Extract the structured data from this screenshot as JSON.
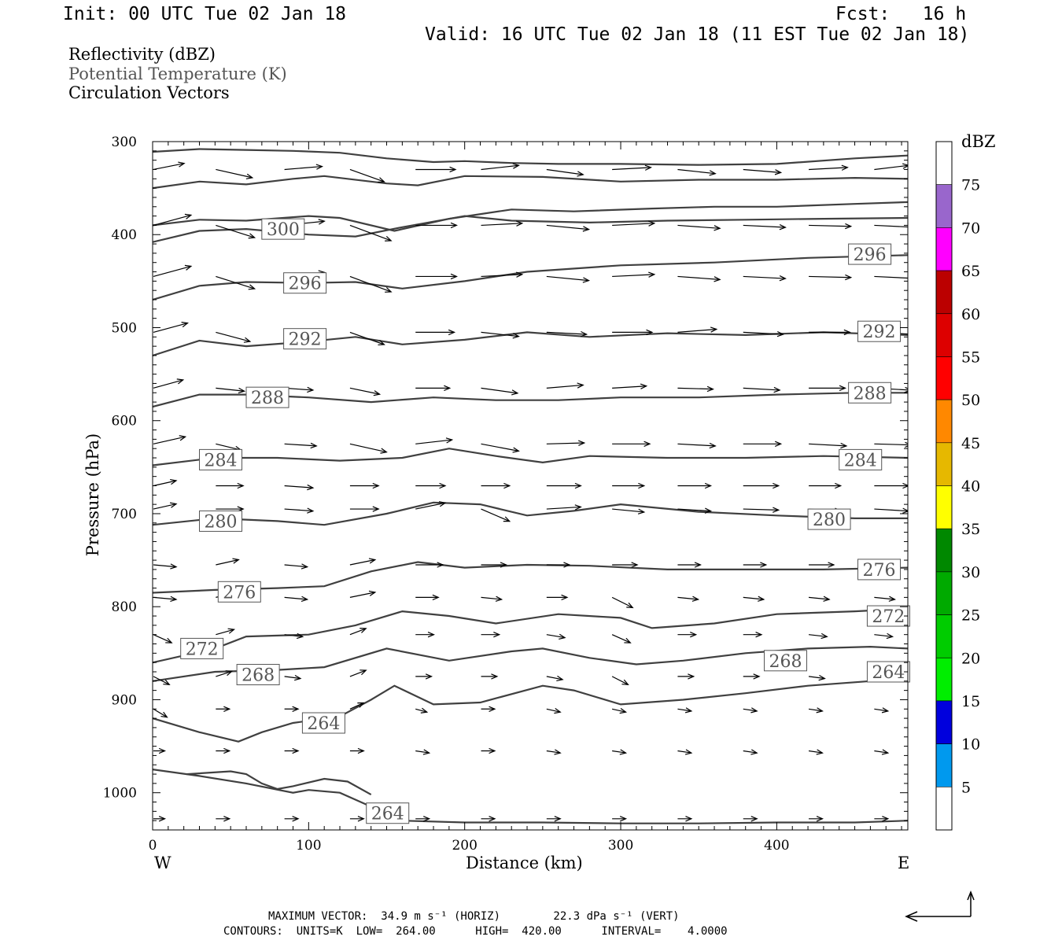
{
  "header": {
    "init": "Init: 00 UTC Tue 02 Jan 18",
    "fcst": "Fcst:   16 h",
    "valid": "Valid: 16 UTC Tue 02 Jan 18 (11 EST Tue 02 Jan 18)"
  },
  "legend_lines": [
    "Reflectivity (dBZ)",
    "Potential Temperature (K)",
    "Circulation Vectors"
  ],
  "footer": {
    "max_vector": "MAXIMUM VECTOR:  34.9 m s⁻¹ (HORIZ)        22.3 dPa s⁻¹ (VERT)",
    "contours": "CONTOURS:  UNITS=K  LOW=  264.00      HIGH=  420.00      INTERVAL=    4.0000"
  },
  "chart_data": {
    "type": "line",
    "xlabel": "Distance (km)",
    "ylabel": "Pressure (hPa)",
    "xlim": [
      0,
      484
    ],
    "ylim": [
      1040,
      300
    ],
    "x_ticks": [
      0,
      100,
      200,
      300,
      400
    ],
    "y_ticks": [
      300,
      400,
      500,
      600,
      700,
      800,
      900,
      1000
    ],
    "x_end_labels": [
      "W",
      "E"
    ],
    "line_color": "#404040",
    "colorbar": {
      "unit": "dBZ",
      "labels": [
        "75",
        "70",
        "65",
        "60",
        "55",
        "50",
        "45",
        "40",
        "35",
        "30",
        "25",
        "20",
        "15",
        "10",
        "5"
      ],
      "colors": [
        "#9966cc",
        "#ff00ff",
        "#bb0000",
        "#dd0000",
        "#ff0000",
        "#ff8800",
        "#e6b800",
        "#ffff00",
        "#008800",
        "#00aa00",
        "#00cc00",
        "#00ee00",
        "#0000dd",
        "#0099ee",
        "#00dddd"
      ]
    },
    "isentropes": [
      {
        "x": [
          0,
          30,
          60,
          90,
          120,
          150,
          180,
          200,
          230,
          260,
          300,
          350,
          400,
          450,
          484
        ],
        "p": [
          311,
          308,
          309,
          310,
          312,
          318,
          322,
          321,
          323,
          324,
          324,
          325,
          324,
          318,
          315
        ]
      },
      {
        "x": [
          0,
          30,
          60,
          90,
          110,
          150,
          170,
          200,
          250,
          300,
          350,
          400,
          450,
          484
        ],
        "p": [
          350,
          343,
          346,
          340,
          337,
          345,
          347,
          337,
          338,
          343,
          341,
          341,
          339,
          340
        ]
      },
      {
        "x": [
          0,
          30,
          60,
          100,
          120,
          155,
          190,
          230,
          270,
          320,
          360,
          400,
          450,
          484
        ],
        "p": [
          390,
          384,
          385,
          380,
          382,
          396,
          383,
          373,
          375,
          372,
          370,
          370,
          367,
          365
        ]
      },
      {
        "x": [
          0,
          30,
          60,
          100,
          130,
          160,
          200,
          230,
          280,
          330,
          380,
          430,
          484
        ],
        "p": [
          408,
          396,
          394,
          400,
          402,
          392,
          380,
          385,
          387,
          385,
          384,
          383,
          382
        ]
      },
      {
        "label": "300",
        "x": [
          70
        ],
        "p": [
          394
        ]
      },
      {
        "x": [
          0,
          30,
          60,
          100,
          130,
          160,
          200,
          240,
          300,
          360,
          420,
          484
        ],
        "p": [
          470,
          455,
          451,
          452,
          451,
          458,
          450,
          440,
          433,
          430,
          425,
          422
        ]
      },
      {
        "label": "296",
        "lx": [
          84,
          446
        ],
        "lp": [
          452,
          421
        ]
      },
      {
        "x": [
          0,
          30,
          60,
          100,
          130,
          160,
          200,
          240,
          280,
          330,
          380,
          430,
          484
        ],
        "p": [
          530,
          514,
          520,
          515,
          510,
          518,
          513,
          505,
          510,
          506,
          508,
          505,
          508
        ]
      },
      {
        "label": "292",
        "lx": [
          84,
          452
        ],
        "lp": [
          512,
          504
        ]
      },
      {
        "x": [
          0,
          30,
          60,
          100,
          140,
          180,
          220,
          260,
          300,
          350,
          400,
          450,
          484
        ],
        "p": [
          585,
          572,
          572,
          575,
          580,
          575,
          578,
          578,
          575,
          575,
          572,
          570,
          570
        ]
      },
      {
        "label": "288",
        "lx": [
          60,
          446
        ],
        "lp": [
          575,
          570
        ]
      },
      {
        "x": [
          0,
          40,
          80,
          120,
          160,
          190,
          220,
          250,
          280,
          330,
          380,
          430,
          484
        ],
        "p": [
          648,
          640,
          640,
          643,
          640,
          630,
          638,
          645,
          638,
          640,
          640,
          638,
          640
        ]
      },
      {
        "label": "284",
        "lx": [
          30,
          440
        ],
        "lp": [
          642,
          642
        ]
      },
      {
        "x": [
          0,
          40,
          80,
          110,
          150,
          180,
          210,
          240,
          270,
          300,
          350,
          400,
          450,
          484
        ],
        "p": [
          712,
          705,
          708,
          712,
          700,
          688,
          690,
          702,
          697,
          690,
          698,
          702,
          705,
          705
        ]
      },
      {
        "label": "280",
        "lx": [
          30,
          420
        ],
        "lp": [
          708,
          706
        ]
      },
      {
        "x": [
          0,
          40,
          80,
          110,
          140,
          170,
          200,
          240,
          280,
          330,
          380,
          430,
          484
        ],
        "p": [
          785,
          782,
          780,
          778,
          762,
          752,
          758,
          755,
          756,
          760,
          760,
          760,
          758
        ]
      },
      {
        "label": "276",
        "lx": [
          42,
          452
        ],
        "lp": [
          784,
          760
        ]
      },
      {
        "x": [
          0,
          40,
          60,
          100,
          130,
          160,
          190,
          220,
          260,
          300,
          320,
          360,
          400,
          450,
          484
        ],
        "p": [
          860,
          845,
          832,
          830,
          820,
          805,
          810,
          818,
          808,
          812,
          823,
          818,
          808,
          805,
          802
        ]
      },
      {
        "label": "272",
        "lx": [
          18,
          458
        ],
        "lp": [
          845,
          810
        ]
      },
      {
        "x": [
          0,
          40,
          80,
          110,
          150,
          190,
          230,
          250,
          280,
          310,
          340,
          380,
          420,
          460,
          484
        ],
        "p": [
          880,
          870,
          868,
          865,
          845,
          858,
          848,
          845,
          855,
          862,
          858,
          850,
          845,
          843,
          845
        ]
      },
      {
        "label": "268",
        "lx": [
          54,
          392
        ],
        "lp": [
          873,
          858
        ]
      },
      {
        "x": [
          0,
          30,
          55,
          70,
          90,
          120,
          140,
          155,
          180,
          210,
          250,
          270,
          300,
          340,
          380,
          420,
          460,
          484
        ],
        "p": [
          920,
          935,
          945,
          935,
          925,
          918,
          900,
          885,
          905,
          903,
          885,
          890,
          905,
          900,
          893,
          885,
          880,
          875
        ]
      },
      {
        "label": "264",
        "lx": [
          96,
          458
        ],
        "lp": [
          925,
          870
        ]
      },
      {
        "x": [
          0,
          30,
          60,
          90,
          100,
          120,
          140,
          160,
          200,
          250,
          300,
          350,
          400,
          450,
          484
        ],
        "p": [
          975,
          982,
          990,
          1000,
          997,
          1000,
          1015,
          1030,
          1032,
          1032,
          1033,
          1033,
          1032,
          1032,
          1030
        ]
      },
      {
        "x": [
          22,
          50,
          60,
          70,
          80,
          90,
          110,
          125,
          140
        ],
        "p": [
          980,
          977,
          980,
          990,
          996,
          993,
          985,
          988,
          1002
        ]
      },
      {
        "label": "264",
        "lx": [
          137
        ],
        "lp": [
          1022
        ]
      }
    ],
    "vectors": [
      {
        "x": [
          0,
          40,
          84,
          126,
          168,
          210,
          252,
          294,
          336,
          378,
          420,
          462
        ],
        "p": 330,
        "u": [
          27,
          32,
          33,
          30,
          35,
          33,
          32,
          34,
          33,
          33,
          34,
          30
        ],
        "v": [
          -6,
          8,
          -3,
          12,
          0,
          -4,
          5,
          -2,
          4,
          3,
          -2,
          -4
        ]
      },
      {
        "x": [
          0,
          40,
          84,
          126,
          168,
          210,
          252,
          294,
          336,
          378,
          420,
          462
        ],
        "p": 390,
        "u": [
          33,
          34,
          35,
          36,
          36,
          36,
          37,
          37,
          37,
          37,
          37,
          37
        ],
        "v": [
          -10,
          12,
          -4,
          15,
          0,
          -2,
          4,
          -2,
          3,
          2,
          1,
          2
        ]
      },
      {
        "x": [
          0,
          40,
          84,
          126,
          168,
          210,
          252,
          294,
          336,
          378,
          420,
          462
        ],
        "p": 445,
        "u": [
          33,
          34,
          35,
          36,
          36,
          36,
          37,
          37,
          37,
          37,
          37,
          37
        ],
        "v": [
          -10,
          12,
          -4,
          15,
          0,
          -2,
          4,
          -2,
          3,
          2,
          1,
          2
        ]
      },
      {
        "x": [
          0,
          40,
          84,
          126,
          168,
          210,
          252,
          294,
          336,
          378,
          420,
          462
        ],
        "p": 505,
        "u": [
          30,
          30,
          30,
          30,
          34,
          33,
          35,
          35,
          34,
          35,
          36,
          35
        ],
        "v": [
          -9,
          9,
          2,
          12,
          0,
          4,
          2,
          0,
          -3,
          2,
          0,
          2
        ]
      },
      {
        "x": [
          0,
          40,
          84,
          126,
          168,
          210,
          252,
          294,
          336,
          378,
          420,
          462
        ],
        "p": 565,
        "u": [
          26,
          25,
          25,
          26,
          30,
          32,
          32,
          30,
          31,
          32,
          32,
          32
        ],
        "v": [
          -8,
          3,
          2,
          6,
          0,
          5,
          -3,
          -2,
          1,
          2,
          0,
          2
        ]
      },
      {
        "x": [
          0,
          40,
          84,
          126,
          168,
          210,
          252,
          294,
          336,
          378,
          420,
          462
        ],
        "p": 625,
        "u": [
          28,
          22,
          28,
          32,
          32,
          33,
          33,
          33,
          33,
          33,
          33,
          32
        ],
        "v": [
          -7,
          6,
          2,
          8,
          -4,
          7,
          -1,
          0,
          2,
          0,
          2,
          1
        ]
      },
      {
        "x": [
          0,
          40,
          84,
          126,
          168,
          210,
          252,
          294,
          336,
          378,
          420,
          462
        ],
        "p": 670,
        "u": [
          20,
          24,
          25,
          25,
          26,
          25,
          30,
          28,
          29,
          31,
          28,
          30
        ],
        "v": [
          -5,
          0,
          2,
          0,
          0,
          0,
          0,
          0,
          0,
          0,
          0,
          0
        ]
      },
      {
        "x": [
          0,
          40,
          84,
          126,
          168,
          210,
          252,
          294,
          336,
          378,
          420,
          462
        ],
        "p": 695,
        "u": [
          20,
          24,
          25,
          25,
          26,
          25,
          30,
          28,
          29,
          31,
          28,
          30
        ],
        "v": [
          -5,
          0,
          2,
          0,
          -6,
          12,
          -2,
          3,
          2,
          1,
          2,
          2
        ]
      },
      {
        "x": [
          0,
          40,
          84,
          126,
          168,
          210,
          252,
          294,
          336,
          378,
          420,
          462
        ],
        "p": 755,
        "u": [
          20,
          20,
          20,
          22,
          24,
          22,
          20,
          22,
          20,
          20,
          22,
          22
        ],
        "v": [
          2,
          -5,
          2,
          -5,
          0,
          0,
          0,
          0,
          0,
          0,
          0,
          0
        ]
      },
      {
        "x": [
          0,
          40,
          84,
          126,
          168,
          210,
          252,
          294,
          336,
          378,
          420,
          462
        ],
        "p": 790,
        "u": [
          20,
          20,
          20,
          22,
          20,
          18,
          18,
          18,
          18,
          18,
          18,
          18
        ],
        "v": [
          2,
          -5,
          2,
          -5,
          0,
          2,
          0,
          10,
          2,
          2,
          2,
          2
        ]
      },
      {
        "x": [
          0,
          40,
          84,
          126,
          168,
          210,
          252,
          294,
          336,
          378,
          420,
          462
        ],
        "p": 830,
        "u": [
          16,
          16,
          16,
          14,
          16,
          16,
          16,
          16,
          16,
          16,
          16,
          16
        ],
        "v": [
          8,
          -5,
          2,
          -6,
          0,
          0,
          3,
          8,
          0,
          0,
          2,
          2
        ]
      },
      {
        "x": [
          0,
          40,
          84,
          126,
          168,
          210,
          252,
          294,
          336,
          378,
          420,
          462
        ],
        "p": 875,
        "u": [
          14,
          14,
          14,
          14,
          14,
          14,
          14,
          14,
          14,
          14,
          14,
          14
        ],
        "v": [
          8,
          -5,
          2,
          -6,
          0,
          0,
          3,
          8,
          0,
          0,
          2,
          2
        ]
      },
      {
        "x": [
          0,
          40,
          84,
          126,
          168,
          210,
          252,
          294,
          336,
          378,
          420,
          462
        ],
        "p": 910,
        "u": [
          12,
          12,
          12,
          12,
          10,
          12,
          12,
          12,
          12,
          12,
          12,
          12
        ],
        "v": [
          8,
          0,
          0,
          -6,
          3,
          0,
          3,
          3,
          2,
          2,
          2,
          2
        ]
      },
      {
        "x": [
          0,
          40,
          84,
          126,
          168,
          210,
          252,
          294,
          336,
          378,
          420,
          462
        ],
        "p": 955,
        "u": [
          10,
          12,
          12,
          12,
          12,
          12,
          12,
          12,
          12,
          12,
          12,
          12
        ],
        "v": [
          0,
          0,
          0,
          0,
          2,
          0,
          2,
          2,
          2,
          2,
          2,
          2
        ]
      },
      {
        "x": [
          0,
          40,
          84,
          126,
          168,
          210,
          252,
          294,
          336,
          378,
          420,
          462
        ],
        "p": 1028,
        "u": [
          10,
          12,
          12,
          12,
          12,
          12,
          12,
          12,
          12,
          12,
          12,
          12
        ],
        "v": [
          0,
          0,
          0,
          0,
          0,
          0,
          0,
          0,
          0,
          0,
          0,
          0
        ]
      }
    ]
  }
}
